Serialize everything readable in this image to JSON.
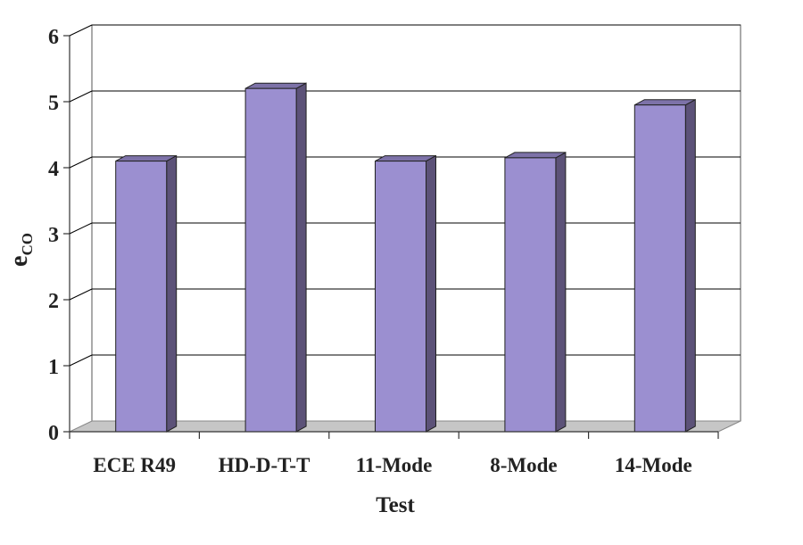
{
  "chart_data": {
    "type": "bar",
    "categories": [
      "ECE R49",
      "HD-D-T-T",
      "11-Mode",
      "8-Mode",
      "14-Mode"
    ],
    "values": [
      4.1,
      5.2,
      4.1,
      4.15,
      4.95
    ],
    "xlabel": "Test",
    "ylabel": {
      "main": "e",
      "sub": "CO"
    },
    "ylim": [
      0,
      6
    ],
    "yticks": [
      "0",
      "1",
      "2",
      "3",
      "4",
      "5",
      "6"
    ],
    "grid": true,
    "style": "3d-bar",
    "colors": {
      "bar_front": "#9b8fd0",
      "bar_side": "#5c5278",
      "bar_top": "#7d72a8",
      "floor": "#c6c6c6",
      "gridline": "#000000"
    }
  }
}
